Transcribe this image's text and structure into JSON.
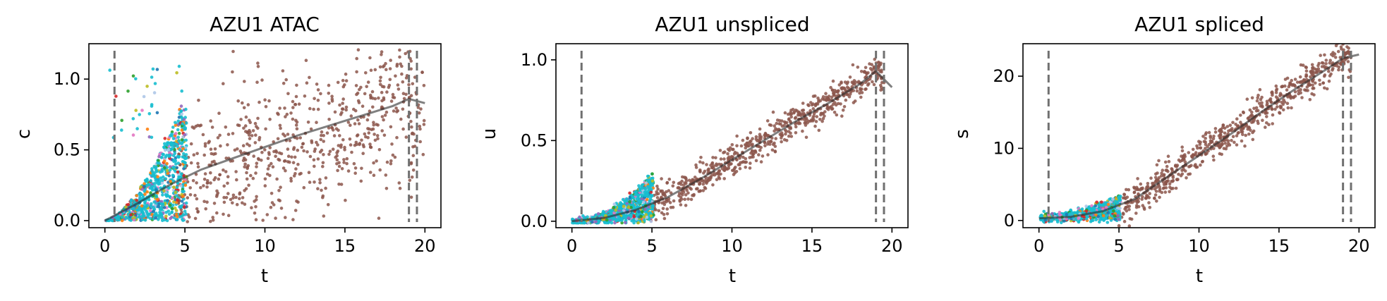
{
  "colors": {
    "scatter_palette": [
      "#1f77b4",
      "#ff7f0e",
      "#2ca02c",
      "#d62728",
      "#9467bd",
      "#e377c2",
      "#bcbd22",
      "#aec7e8",
      "#17becf"
    ],
    "late_cells": "#8c564b",
    "fit_line": "#2b2b2b",
    "cutoff_line": "#707070"
  },
  "chart_data": [
    {
      "type": "scatter",
      "title": "AZU1 ATAC",
      "xlabel": "t",
      "ylabel": "c",
      "xlim": [
        -1.0,
        21.0
      ],
      "ylim": [
        -0.05,
        1.25
      ],
      "xticks": [
        0,
        5,
        10,
        15,
        20
      ],
      "yticks": [
        0.0,
        0.5,
        1.0
      ],
      "ytick_labels": [
        "0.0",
        "0.5",
        "1.0"
      ],
      "vlines": [
        0.6,
        19.0,
        19.5
      ],
      "fit": {
        "t": [
          0,
          2,
          4,
          6,
          8,
          10,
          12,
          14,
          16,
          18,
          19,
          20
        ],
        "value": [
          0.0,
          0.12,
          0.25,
          0.36,
          0.44,
          0.52,
          0.6,
          0.67,
          0.74,
          0.81,
          0.86,
          0.83
        ]
      },
      "early_cluster": {
        "t_range": [
          0.0,
          5.0
        ],
        "level": "rising, 0.0 to 0.8"
      },
      "late_cluster": {
        "t_range": [
          5.0,
          20.0
        ],
        "level": "spread, 0.0 to 1.2"
      },
      "grid": false
    },
    {
      "type": "scatter",
      "title": "AZU1 unspliced",
      "xlabel": "t",
      "ylabel": "u",
      "xlim": [
        -1.0,
        21.0
      ],
      "ylim": [
        -0.04,
        1.1
      ],
      "xticks": [
        0,
        5,
        10,
        15,
        20
      ],
      "yticks": [
        0.0,
        0.5,
        1.0
      ],
      "ytick_labels": [
        "0.0",
        "0.5",
        "1.0"
      ],
      "vlines": [
        0.6,
        19.0,
        19.5
      ],
      "fit": {
        "t": [
          0,
          2,
          4,
          6,
          8,
          10,
          12,
          14,
          16,
          18,
          19,
          20
        ],
        "value": [
          0.0,
          0.02,
          0.07,
          0.15,
          0.26,
          0.38,
          0.5,
          0.62,
          0.73,
          0.85,
          0.93,
          0.83
        ]
      },
      "early_cluster": {
        "t_range": [
          0.0,
          5.0
        ],
        "level": "0.0 to 0.1"
      },
      "late_cluster": {
        "t_range": [
          5.0,
          20.0
        ],
        "level": "along fit, 0.1 to 1.0"
      },
      "grid": false
    },
    {
      "type": "scatter",
      "title": "AZU1 spliced",
      "xlabel": "t",
      "ylabel": "s",
      "xlim": [
        -1.0,
        21.0
      ],
      "ylim": [
        -1.0,
        24.5
      ],
      "xticks": [
        0,
        5,
        10,
        15,
        20
      ],
      "yticks": [
        0,
        10,
        20
      ],
      "ytick_labels": [
        "0",
        "10",
        "20"
      ],
      "vlines": [
        0.6,
        19.0,
        19.5
      ],
      "fit": {
        "t": [
          0,
          2,
          4,
          6,
          8,
          10,
          12,
          14,
          16,
          18,
          19,
          20
        ],
        "value": [
          0.3,
          0.5,
          1.3,
          3.0,
          6.0,
          9.0,
          12.0,
          15.2,
          18.2,
          21.0,
          22.5,
          23.0
        ]
      },
      "early_cluster": {
        "t_range": [
          0.0,
          5.0
        ],
        "level": "0 to 3"
      },
      "late_cluster": {
        "t_range": [
          5.0,
          20.0
        ],
        "level": "along fit, 3 to 23"
      },
      "grid": false
    }
  ]
}
